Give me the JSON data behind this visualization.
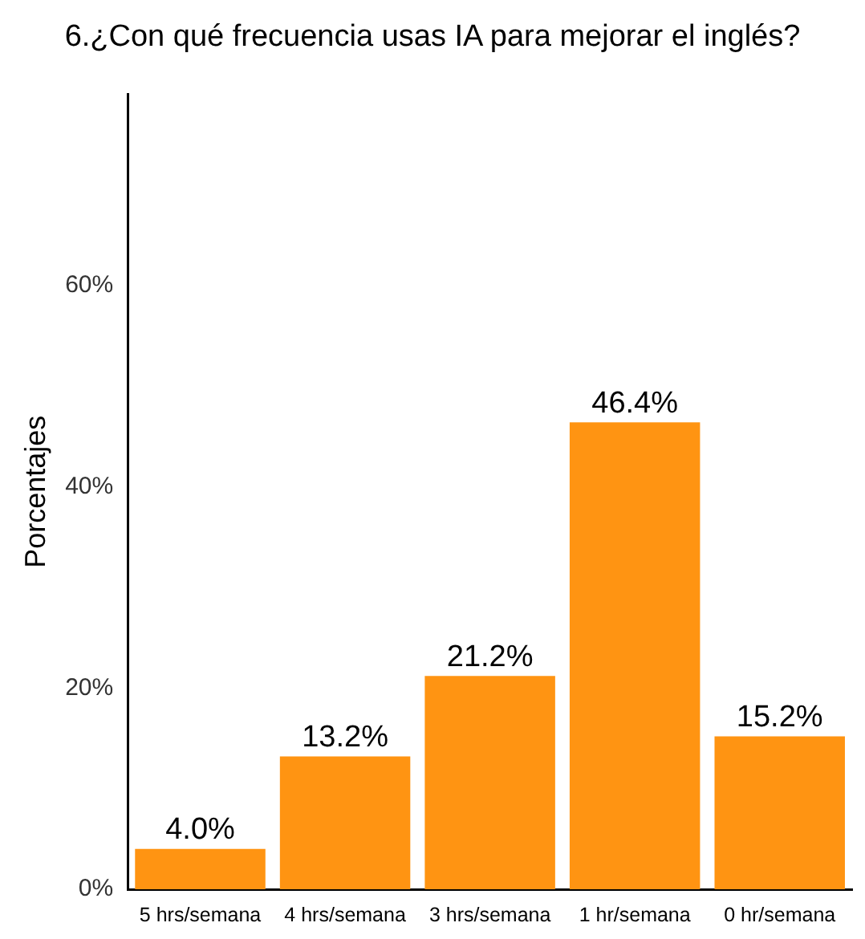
{
  "chart_data": {
    "type": "bar",
    "title": "6.¿Con qué frecuencia usas IA para mejorar el inglés?",
    "ylabel": "Porcentajes",
    "categories": [
      "5 hrs/semana",
      "4 hrs/semana",
      "3 hrs/semana",
      "1 hr/semana",
      "0 hr/semana"
    ],
    "values": [
      4.0,
      13.2,
      21.2,
      46.4,
      15.2
    ],
    "value_labels": [
      "4.0%",
      "13.2%",
      "21.2%",
      "46.4%",
      "15.2%"
    ],
    "color": "#ff9412",
    "ylim": [
      0,
      79
    ],
    "yticks": [
      {
        "value": 0,
        "label": "0%"
      },
      {
        "value": 20,
        "label": "20%"
      },
      {
        "value": 40,
        "label": "40%"
      },
      {
        "value": 60,
        "label": "60%"
      }
    ],
    "grid": false,
    "legend": false
  }
}
